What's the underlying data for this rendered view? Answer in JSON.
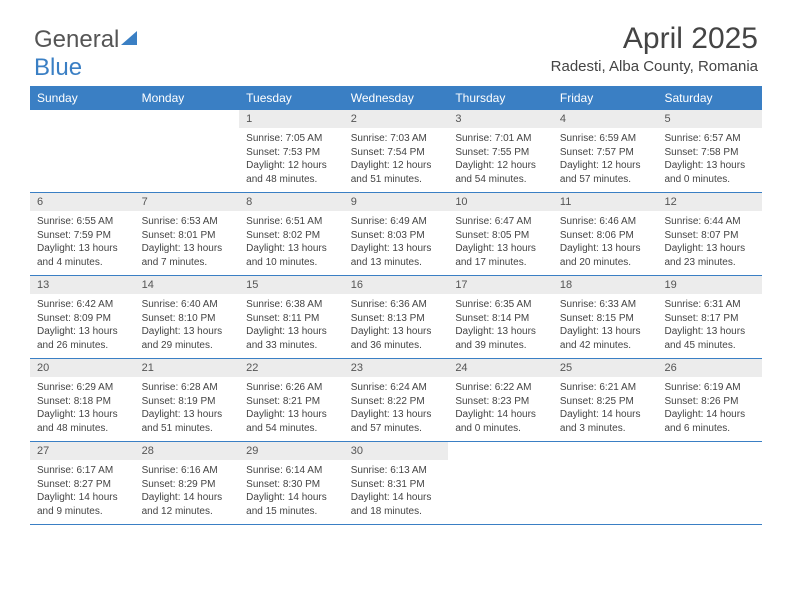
{
  "logo": {
    "part1": "General",
    "part2": "Blue"
  },
  "title": {
    "month": "April 2025",
    "location": "Radesti, Alba County, Romania"
  },
  "colors": {
    "header_bg": "#3a7fc4",
    "daynum_bg": "#ececec",
    "text": "#444444",
    "border": "#3a7fc4"
  },
  "dayNames": [
    "Sunday",
    "Monday",
    "Tuesday",
    "Wednesday",
    "Thursday",
    "Friday",
    "Saturday"
  ],
  "weeks": [
    [
      null,
      null,
      {
        "n": "1",
        "sunrise": "Sunrise: 7:05 AM",
        "sunset": "Sunset: 7:53 PM",
        "daylight": "Daylight: 12 hours and 48 minutes."
      },
      {
        "n": "2",
        "sunrise": "Sunrise: 7:03 AM",
        "sunset": "Sunset: 7:54 PM",
        "daylight": "Daylight: 12 hours and 51 minutes."
      },
      {
        "n": "3",
        "sunrise": "Sunrise: 7:01 AM",
        "sunset": "Sunset: 7:55 PM",
        "daylight": "Daylight: 12 hours and 54 minutes."
      },
      {
        "n": "4",
        "sunrise": "Sunrise: 6:59 AM",
        "sunset": "Sunset: 7:57 PM",
        "daylight": "Daylight: 12 hours and 57 minutes."
      },
      {
        "n": "5",
        "sunrise": "Sunrise: 6:57 AM",
        "sunset": "Sunset: 7:58 PM",
        "daylight": "Daylight: 13 hours and 0 minutes."
      }
    ],
    [
      {
        "n": "6",
        "sunrise": "Sunrise: 6:55 AM",
        "sunset": "Sunset: 7:59 PM",
        "daylight": "Daylight: 13 hours and 4 minutes."
      },
      {
        "n": "7",
        "sunrise": "Sunrise: 6:53 AM",
        "sunset": "Sunset: 8:01 PM",
        "daylight": "Daylight: 13 hours and 7 minutes."
      },
      {
        "n": "8",
        "sunrise": "Sunrise: 6:51 AM",
        "sunset": "Sunset: 8:02 PM",
        "daylight": "Daylight: 13 hours and 10 minutes."
      },
      {
        "n": "9",
        "sunrise": "Sunrise: 6:49 AM",
        "sunset": "Sunset: 8:03 PM",
        "daylight": "Daylight: 13 hours and 13 minutes."
      },
      {
        "n": "10",
        "sunrise": "Sunrise: 6:47 AM",
        "sunset": "Sunset: 8:05 PM",
        "daylight": "Daylight: 13 hours and 17 minutes."
      },
      {
        "n": "11",
        "sunrise": "Sunrise: 6:46 AM",
        "sunset": "Sunset: 8:06 PM",
        "daylight": "Daylight: 13 hours and 20 minutes."
      },
      {
        "n": "12",
        "sunrise": "Sunrise: 6:44 AM",
        "sunset": "Sunset: 8:07 PM",
        "daylight": "Daylight: 13 hours and 23 minutes."
      }
    ],
    [
      {
        "n": "13",
        "sunrise": "Sunrise: 6:42 AM",
        "sunset": "Sunset: 8:09 PM",
        "daylight": "Daylight: 13 hours and 26 minutes."
      },
      {
        "n": "14",
        "sunrise": "Sunrise: 6:40 AM",
        "sunset": "Sunset: 8:10 PM",
        "daylight": "Daylight: 13 hours and 29 minutes."
      },
      {
        "n": "15",
        "sunrise": "Sunrise: 6:38 AM",
        "sunset": "Sunset: 8:11 PM",
        "daylight": "Daylight: 13 hours and 33 minutes."
      },
      {
        "n": "16",
        "sunrise": "Sunrise: 6:36 AM",
        "sunset": "Sunset: 8:13 PM",
        "daylight": "Daylight: 13 hours and 36 minutes."
      },
      {
        "n": "17",
        "sunrise": "Sunrise: 6:35 AM",
        "sunset": "Sunset: 8:14 PM",
        "daylight": "Daylight: 13 hours and 39 minutes."
      },
      {
        "n": "18",
        "sunrise": "Sunrise: 6:33 AM",
        "sunset": "Sunset: 8:15 PM",
        "daylight": "Daylight: 13 hours and 42 minutes."
      },
      {
        "n": "19",
        "sunrise": "Sunrise: 6:31 AM",
        "sunset": "Sunset: 8:17 PM",
        "daylight": "Daylight: 13 hours and 45 minutes."
      }
    ],
    [
      {
        "n": "20",
        "sunrise": "Sunrise: 6:29 AM",
        "sunset": "Sunset: 8:18 PM",
        "daylight": "Daylight: 13 hours and 48 minutes."
      },
      {
        "n": "21",
        "sunrise": "Sunrise: 6:28 AM",
        "sunset": "Sunset: 8:19 PM",
        "daylight": "Daylight: 13 hours and 51 minutes."
      },
      {
        "n": "22",
        "sunrise": "Sunrise: 6:26 AM",
        "sunset": "Sunset: 8:21 PM",
        "daylight": "Daylight: 13 hours and 54 minutes."
      },
      {
        "n": "23",
        "sunrise": "Sunrise: 6:24 AM",
        "sunset": "Sunset: 8:22 PM",
        "daylight": "Daylight: 13 hours and 57 minutes."
      },
      {
        "n": "24",
        "sunrise": "Sunrise: 6:22 AM",
        "sunset": "Sunset: 8:23 PM",
        "daylight": "Daylight: 14 hours and 0 minutes."
      },
      {
        "n": "25",
        "sunrise": "Sunrise: 6:21 AM",
        "sunset": "Sunset: 8:25 PM",
        "daylight": "Daylight: 14 hours and 3 minutes."
      },
      {
        "n": "26",
        "sunrise": "Sunrise: 6:19 AM",
        "sunset": "Sunset: 8:26 PM",
        "daylight": "Daylight: 14 hours and 6 minutes."
      }
    ],
    [
      {
        "n": "27",
        "sunrise": "Sunrise: 6:17 AM",
        "sunset": "Sunset: 8:27 PM",
        "daylight": "Daylight: 14 hours and 9 minutes."
      },
      {
        "n": "28",
        "sunrise": "Sunrise: 6:16 AM",
        "sunset": "Sunset: 8:29 PM",
        "daylight": "Daylight: 14 hours and 12 minutes."
      },
      {
        "n": "29",
        "sunrise": "Sunrise: 6:14 AM",
        "sunset": "Sunset: 8:30 PM",
        "daylight": "Daylight: 14 hours and 15 minutes."
      },
      {
        "n": "30",
        "sunrise": "Sunrise: 6:13 AM",
        "sunset": "Sunset: 8:31 PM",
        "daylight": "Daylight: 14 hours and 18 minutes."
      },
      null,
      null,
      null
    ]
  ]
}
